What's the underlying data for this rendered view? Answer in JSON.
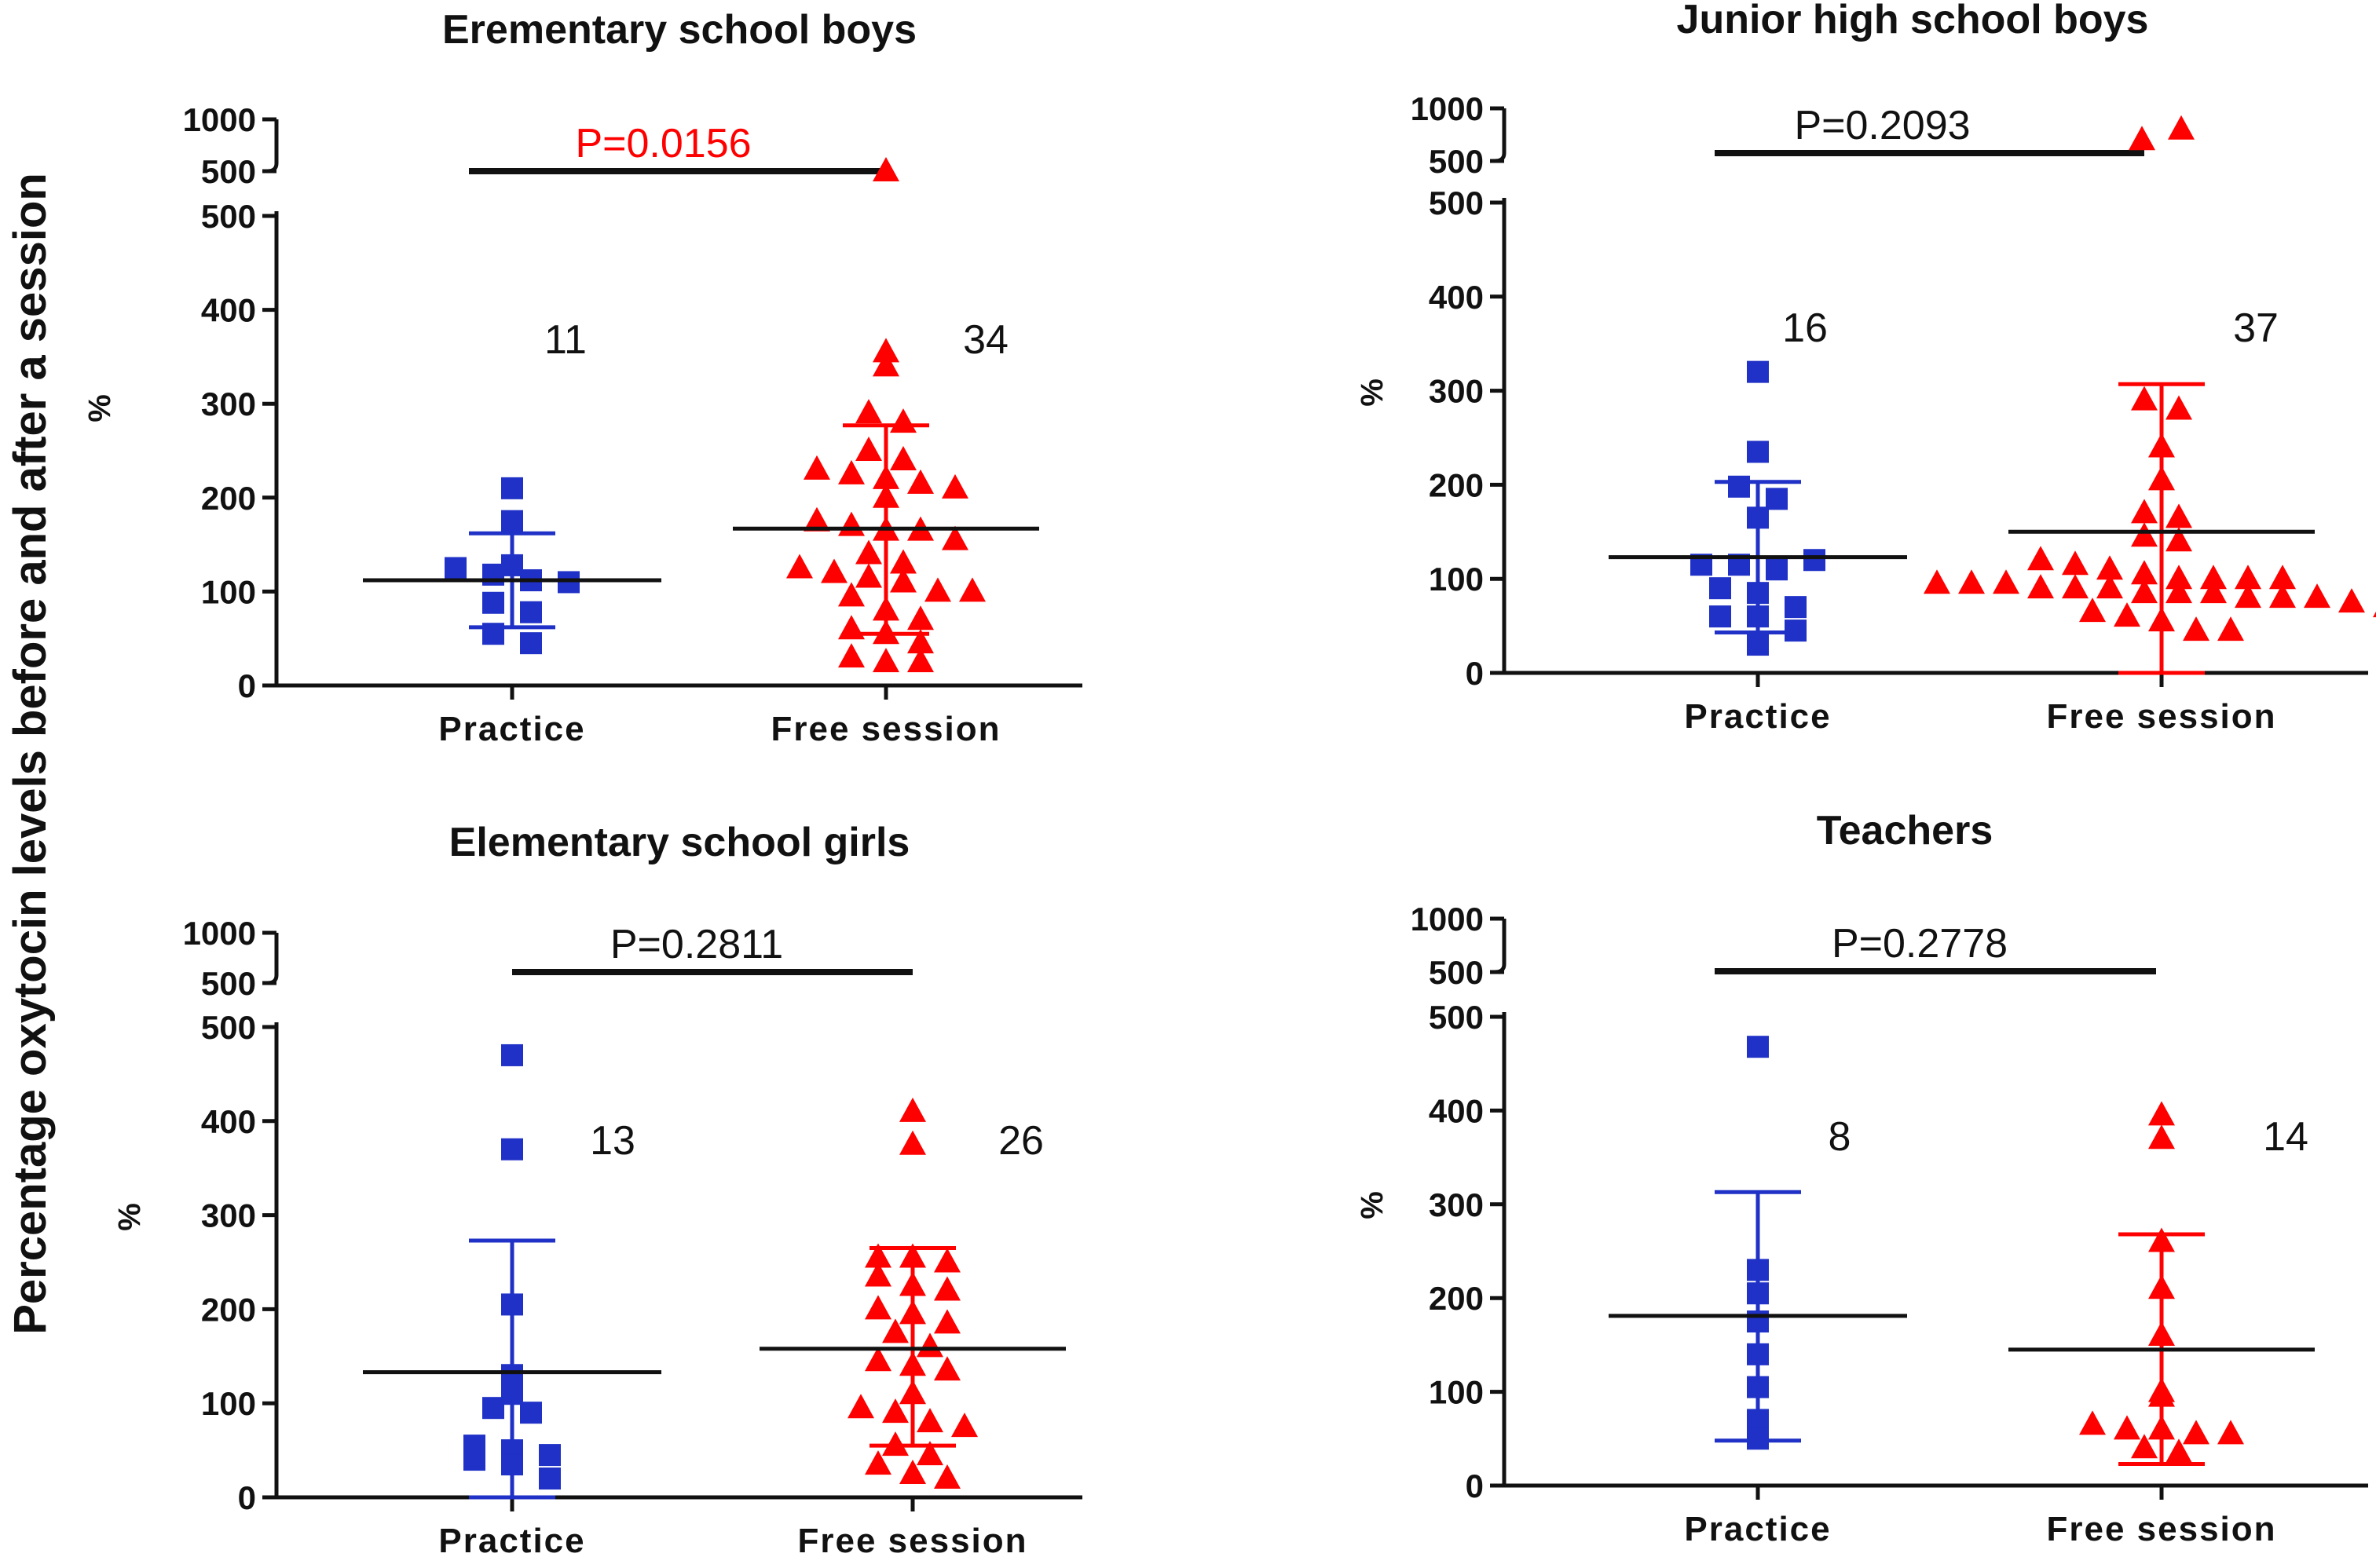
{
  "chart_data": {
    "type": "scatter",
    "ylabel": "Percentage oxytocin levels before and after a session",
    "unit_label": "%",
    "categories": [
      "Practice",
      "Free session"
    ],
    "series_colors": {
      "Practice": "#1f31c6",
      "Free session": "#ff0000"
    },
    "series_markers": {
      "Practice": "square",
      "Free session": "triangle"
    },
    "panels": [
      {
        "title": "Erementary school boys",
        "pvalue": "P=0.0156",
        "pvalue_color": "#ff0000",
        "upper_ticks": [
          "1000",
          "500"
        ],
        "lower_ticks": [
          "500",
          "400",
          "300",
          "200",
          "100",
          "0"
        ],
        "ylim": [
          0,
          500
        ],
        "upper_ylim": [
          500,
          1000
        ],
        "n_labels": [
          "11",
          "34"
        ],
        "groups": [
          {
            "name": "Practice",
            "mean": 112,
            "sd_upper": 162,
            "sd_lower": 62,
            "values": [
              210,
              175,
              128,
              125,
              118,
              112,
              88,
              78,
              55,
              45,
              110
            ]
          },
          {
            "name": "Free session",
            "mean": 167,
            "sd_upper": 277,
            "sd_lower": 55,
            "values": [
              355,
              340,
              290,
              280,
              250,
              240,
              230,
              225,
              220,
              215,
              210,
              200,
              175,
              170,
              165,
              165,
              155,
              140,
              130,
              125,
              120,
              115,
              110,
              100,
              100,
              95,
              80,
              70,
              60,
              55,
              45,
              30,
              25,
              25
            ],
            "upper_values": [
              500
            ]
          }
        ]
      },
      {
        "title": "Junior high school boys",
        "pvalue": "P=0.2093",
        "pvalue_color": "#111111",
        "upper_ticks": [
          "1000",
          "500"
        ],
        "lower_ticks": [
          "500",
          "400",
          "300",
          "200",
          "100",
          "0"
        ],
        "ylim": [
          0,
          500
        ],
        "upper_ylim": [
          500,
          1000
        ],
        "n_labels": [
          "16",
          "37"
        ],
        "groups": [
          {
            "name": "Practice",
            "mean": 123,
            "sd_upper": 203,
            "sd_lower": 43,
            "values": [
              320,
              235,
              198,
              185,
              165,
              115,
              115,
              110,
              90,
              85,
              70,
              60,
              60,
              45,
              30,
              120
            ]
          },
          {
            "name": "Free session",
            "mean": 150,
            "sd_upper": 307,
            "sd_lower": 0,
            "values": [
              290,
              280,
              240,
              205,
              170,
              165,
              145,
              140,
              120,
              115,
              110,
              105,
              100,
              100,
              100,
              100,
              95,
              95,
              95,
              90,
              90,
              90,
              85,
              85,
              85,
              80,
              80,
              80,
              75,
              70,
              65,
              60,
              55,
              45,
              45
            ],
            "upper_values": [
              700,
              800
            ]
          }
        ]
      },
      {
        "title": "Elementary school girls",
        "pvalue": "P=0.2811",
        "pvalue_color": "#111111",
        "upper_ticks": [
          "1000",
          "500"
        ],
        "lower_ticks": [
          "500",
          "400",
          "300",
          "200",
          "100",
          "0"
        ],
        "ylim": [
          0,
          500
        ],
        "upper_ylim": [
          500,
          1000
        ],
        "n_labels": [
          "13",
          "26"
        ],
        "groups": [
          {
            "name": "Practice",
            "mean": 133,
            "sd_upper": 273,
            "sd_lower": 0,
            "values": [
              470,
              370,
              205,
              130,
              110,
              95,
              90,
              55,
              50,
              45,
              40,
              35,
              20
            ]
          },
          {
            "name": "Free session",
            "mean": 158,
            "sd_upper": 265,
            "sd_lower": 55,
            "values": [
              410,
              375,
              255,
              255,
              250,
              235,
              225,
              220,
              200,
              195,
              185,
              175,
              160,
              145,
              140,
              135,
              110,
              95,
              90,
              80,
              75,
              55,
              45,
              35,
              25,
              20
            ]
          }
        ]
      },
      {
        "title": "Teachers",
        "pvalue": "P=0.2778",
        "pvalue_color": "#111111",
        "upper_ticks": [
          "1000",
          "500"
        ],
        "lower_ticks": [
          "500",
          "400",
          "300",
          "200",
          "100",
          "0"
        ],
        "ylim": [
          0,
          500
        ],
        "upper_ylim": [
          500,
          1000
        ],
        "n_labels": [
          "8",
          "14"
        ],
        "groups": [
          {
            "name": "Practice",
            "mean": 181,
            "sd_upper": 313,
            "sd_lower": 48,
            "values": [
              468,
              230,
              205,
              175,
              140,
              105,
              70,
              50
            ]
          },
          {
            "name": "Free session",
            "mean": 145,
            "sd_upper": 268,
            "sd_lower": 23,
            "values": [
              395,
              370,
              260,
              210,
              160,
              100,
              95,
              65,
              60,
              60,
              55,
              55,
              40,
              35
            ]
          }
        ]
      }
    ]
  }
}
